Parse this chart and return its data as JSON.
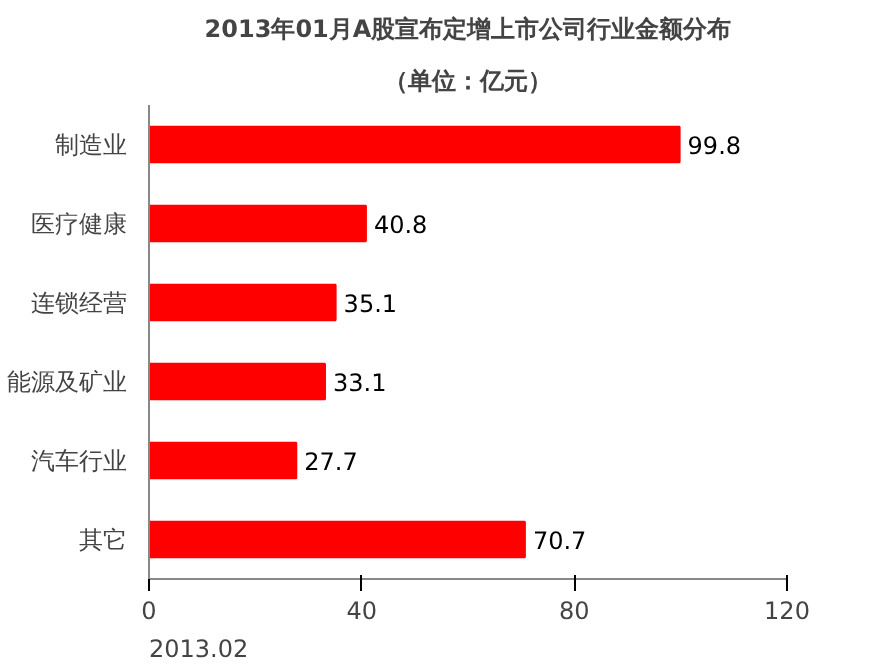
{
  "chart_data": {
    "type": "bar",
    "orientation": "horizontal",
    "title": "2013年01月A股宣布定增上市公司行业金额分布",
    "subtitle": "（单位：亿元）",
    "categories": [
      "制造业",
      "医疗健康",
      "连锁经营",
      "能源及矿业",
      "汽车行业",
      "其它"
    ],
    "values": [
      99.8,
      40.8,
      35.1,
      33.1,
      27.7,
      70.7
    ],
    "color": "#ff0000",
    "xlim": [
      0,
      120
    ],
    "xticks": [
      0,
      40,
      80,
      120
    ],
    "data_labels": true,
    "grid": false,
    "annotations": [
      "2013.02"
    ]
  }
}
